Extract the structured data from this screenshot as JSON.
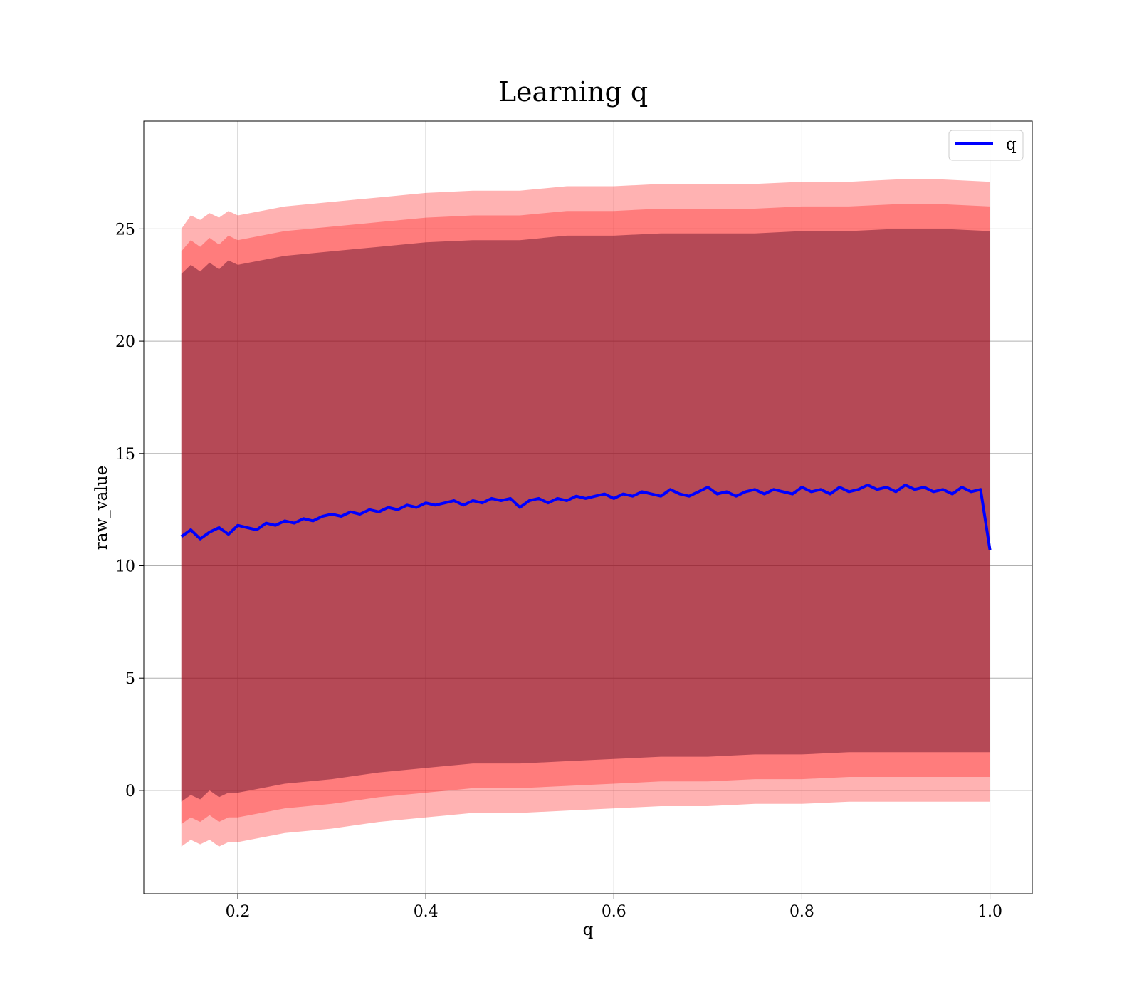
{
  "chart_data": {
    "type": "line",
    "title": "Learning q",
    "xlabel": "q",
    "ylabel": "raw_value",
    "xlim": [
      0.1,
      1.045
    ],
    "ylim": [
      -4.6,
      29.8
    ],
    "xticks": [
      0.2,
      0.4,
      0.6,
      0.8,
      1.0
    ],
    "xtick_labels": [
      "0.2",
      "0.4",
      "0.6",
      "0.8",
      "1.0"
    ],
    "yticks": [
      0,
      5,
      10,
      15,
      20,
      25
    ],
    "ytick_labels": [
      "0",
      "5",
      "10",
      "15",
      "20",
      "25"
    ],
    "grid": true,
    "legend": {
      "position": "upper right",
      "entries": [
        "q"
      ]
    },
    "colors": {
      "line": "#0000ff",
      "band": "#ff0000",
      "band_inner": "#5a0a28"
    },
    "series": [
      {
        "name": "q",
        "kind": "line",
        "x": [
          0.14,
          0.15,
          0.16,
          0.17,
          0.18,
          0.19,
          0.2,
          0.21,
          0.22,
          0.23,
          0.24,
          0.25,
          0.26,
          0.27,
          0.28,
          0.29,
          0.3,
          0.31,
          0.32,
          0.33,
          0.34,
          0.35,
          0.36,
          0.37,
          0.38,
          0.39,
          0.4,
          0.41,
          0.42,
          0.43,
          0.44,
          0.45,
          0.46,
          0.47,
          0.48,
          0.49,
          0.5,
          0.51,
          0.52,
          0.53,
          0.54,
          0.55,
          0.56,
          0.57,
          0.58,
          0.59,
          0.6,
          0.61,
          0.62,
          0.63,
          0.64,
          0.65,
          0.66,
          0.67,
          0.68,
          0.69,
          0.7,
          0.71,
          0.72,
          0.73,
          0.74,
          0.75,
          0.76,
          0.77,
          0.78,
          0.79,
          0.8,
          0.81,
          0.82,
          0.83,
          0.84,
          0.85,
          0.86,
          0.87,
          0.88,
          0.89,
          0.9,
          0.91,
          0.92,
          0.93,
          0.94,
          0.95,
          0.96,
          0.97,
          0.98,
          0.99,
          1.0
        ],
        "y": [
          11.3,
          11.6,
          11.2,
          11.5,
          11.7,
          11.4,
          11.8,
          11.7,
          11.6,
          11.9,
          11.8,
          12.0,
          11.9,
          12.1,
          12.0,
          12.2,
          12.3,
          12.2,
          12.4,
          12.3,
          12.5,
          12.4,
          12.6,
          12.5,
          12.7,
          12.6,
          12.8,
          12.7,
          12.8,
          12.9,
          12.7,
          12.9,
          12.8,
          13.0,
          12.9,
          13.0,
          12.6,
          12.9,
          13.0,
          12.8,
          13.0,
          12.9,
          13.1,
          13.0,
          13.1,
          13.2,
          13.0,
          13.2,
          13.1,
          13.3,
          13.2,
          13.1,
          13.4,
          13.2,
          13.1,
          13.3,
          13.5,
          13.2,
          13.3,
          13.1,
          13.3,
          13.4,
          13.2,
          13.4,
          13.3,
          13.2,
          13.5,
          13.3,
          13.4,
          13.2,
          13.5,
          13.3,
          13.4,
          13.6,
          13.4,
          13.5,
          13.3,
          13.6,
          13.4,
          13.5,
          13.3,
          13.4,
          13.2,
          13.5,
          13.3,
          13.4,
          10.7
        ]
      },
      {
        "name": "",
        "kind": "band-outer",
        "x": [
          0.14,
          0.15,
          0.16,
          0.17,
          0.18,
          0.19,
          0.2,
          0.25,
          0.3,
          0.35,
          0.4,
          0.45,
          0.5,
          0.55,
          0.6,
          0.65,
          0.7,
          0.75,
          0.8,
          0.85,
          0.9,
          0.95,
          1.0
        ],
        "upper": [
          25.0,
          25.6,
          25.4,
          25.7,
          25.5,
          25.8,
          25.6,
          26.0,
          26.2,
          26.4,
          26.6,
          26.7,
          26.7,
          26.9,
          26.9,
          27.0,
          27.0,
          27.0,
          27.1,
          27.1,
          27.2,
          27.2,
          27.1
        ],
        "lower": [
          -2.5,
          -2.2,
          -2.4,
          -2.2,
          -2.5,
          -2.3,
          -2.3,
          -1.9,
          -1.7,
          -1.4,
          -1.2,
          -1.0,
          -1.0,
          -0.9,
          -0.8,
          -0.7,
          -0.7,
          -0.6,
          -0.6,
          -0.5,
          -0.5,
          -0.5,
          -0.5
        ]
      },
      {
        "name": "",
        "kind": "band-middle",
        "x": [
          0.14,
          0.15,
          0.16,
          0.17,
          0.18,
          0.19,
          0.2,
          0.25,
          0.3,
          0.35,
          0.4,
          0.45,
          0.5,
          0.55,
          0.6,
          0.65,
          0.7,
          0.75,
          0.8,
          0.85,
          0.9,
          0.95,
          1.0
        ],
        "upper": [
          24.0,
          24.5,
          24.2,
          24.6,
          24.3,
          24.7,
          24.5,
          24.9,
          25.1,
          25.3,
          25.5,
          25.6,
          25.6,
          25.8,
          25.8,
          25.9,
          25.9,
          25.9,
          26.0,
          26.0,
          26.1,
          26.1,
          26.0
        ],
        "lower": [
          -1.5,
          -1.2,
          -1.4,
          -1.1,
          -1.4,
          -1.2,
          -1.2,
          -0.8,
          -0.6,
          -0.3,
          -0.1,
          0.1,
          0.1,
          0.2,
          0.3,
          0.4,
          0.4,
          0.5,
          0.5,
          0.6,
          0.6,
          0.6,
          0.6
        ]
      },
      {
        "name": "",
        "kind": "band-inner",
        "x": [
          0.14,
          0.15,
          0.16,
          0.17,
          0.18,
          0.19,
          0.2,
          0.25,
          0.3,
          0.35,
          0.4,
          0.45,
          0.5,
          0.55,
          0.6,
          0.65,
          0.7,
          0.75,
          0.8,
          0.85,
          0.9,
          0.95,
          1.0
        ],
        "upper": [
          23.0,
          23.4,
          23.1,
          23.5,
          23.2,
          23.6,
          23.4,
          23.8,
          24.0,
          24.2,
          24.4,
          24.5,
          24.5,
          24.7,
          24.7,
          24.8,
          24.8,
          24.8,
          24.9,
          24.9,
          25.0,
          25.0,
          24.9
        ],
        "lower": [
          -0.5,
          -0.2,
          -0.4,
          0.0,
          -0.3,
          -0.1,
          -0.1,
          0.3,
          0.5,
          0.8,
          1.0,
          1.2,
          1.2,
          1.3,
          1.4,
          1.5,
          1.5,
          1.6,
          1.6,
          1.7,
          1.7,
          1.7,
          1.7
        ]
      }
    ]
  }
}
